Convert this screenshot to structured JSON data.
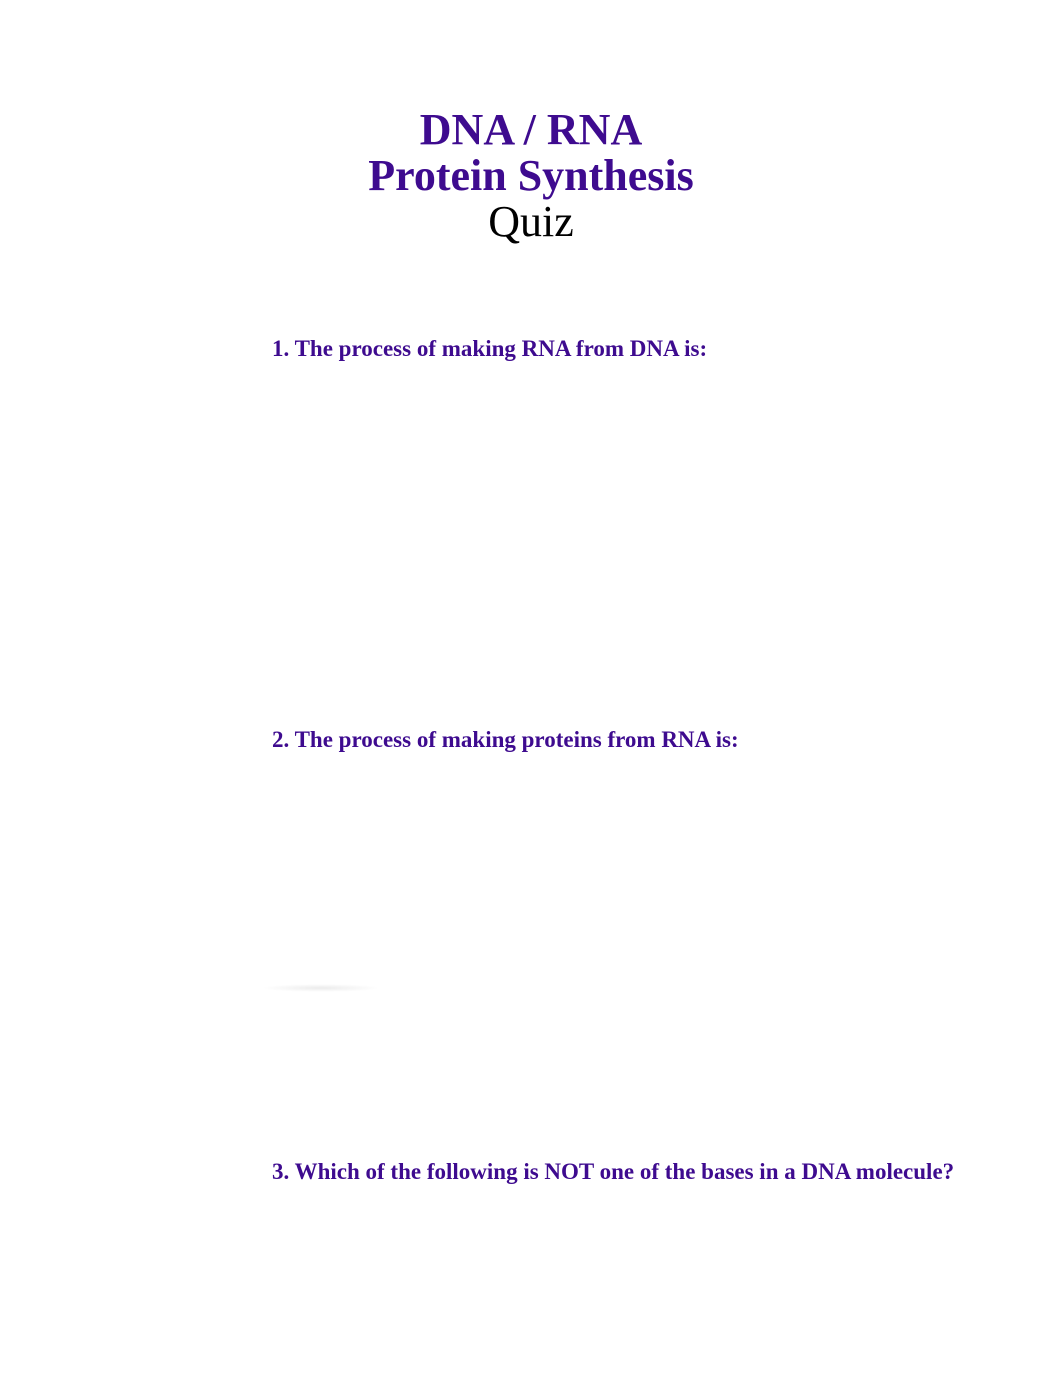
{
  "title": {
    "line1": "DNA / RNA",
    "line2": "Protein Synthesis",
    "line3": "Quiz"
  },
  "questions": {
    "q1": "1. The process of making RNA from DNA is:",
    "q2": "2. The process of making proteins from RNA is:",
    "q3": "3. Which of the following is NOT one of the bases in a DNA molecule?"
  },
  "colors": {
    "title_color": "#3e0b8f",
    "quiz_color": "#000000",
    "question_color": "#3e0b8f",
    "background": "#ffffff"
  },
  "typography": {
    "title_fontsize": 44,
    "question_fontsize": 23,
    "font_family": "Georgia"
  }
}
